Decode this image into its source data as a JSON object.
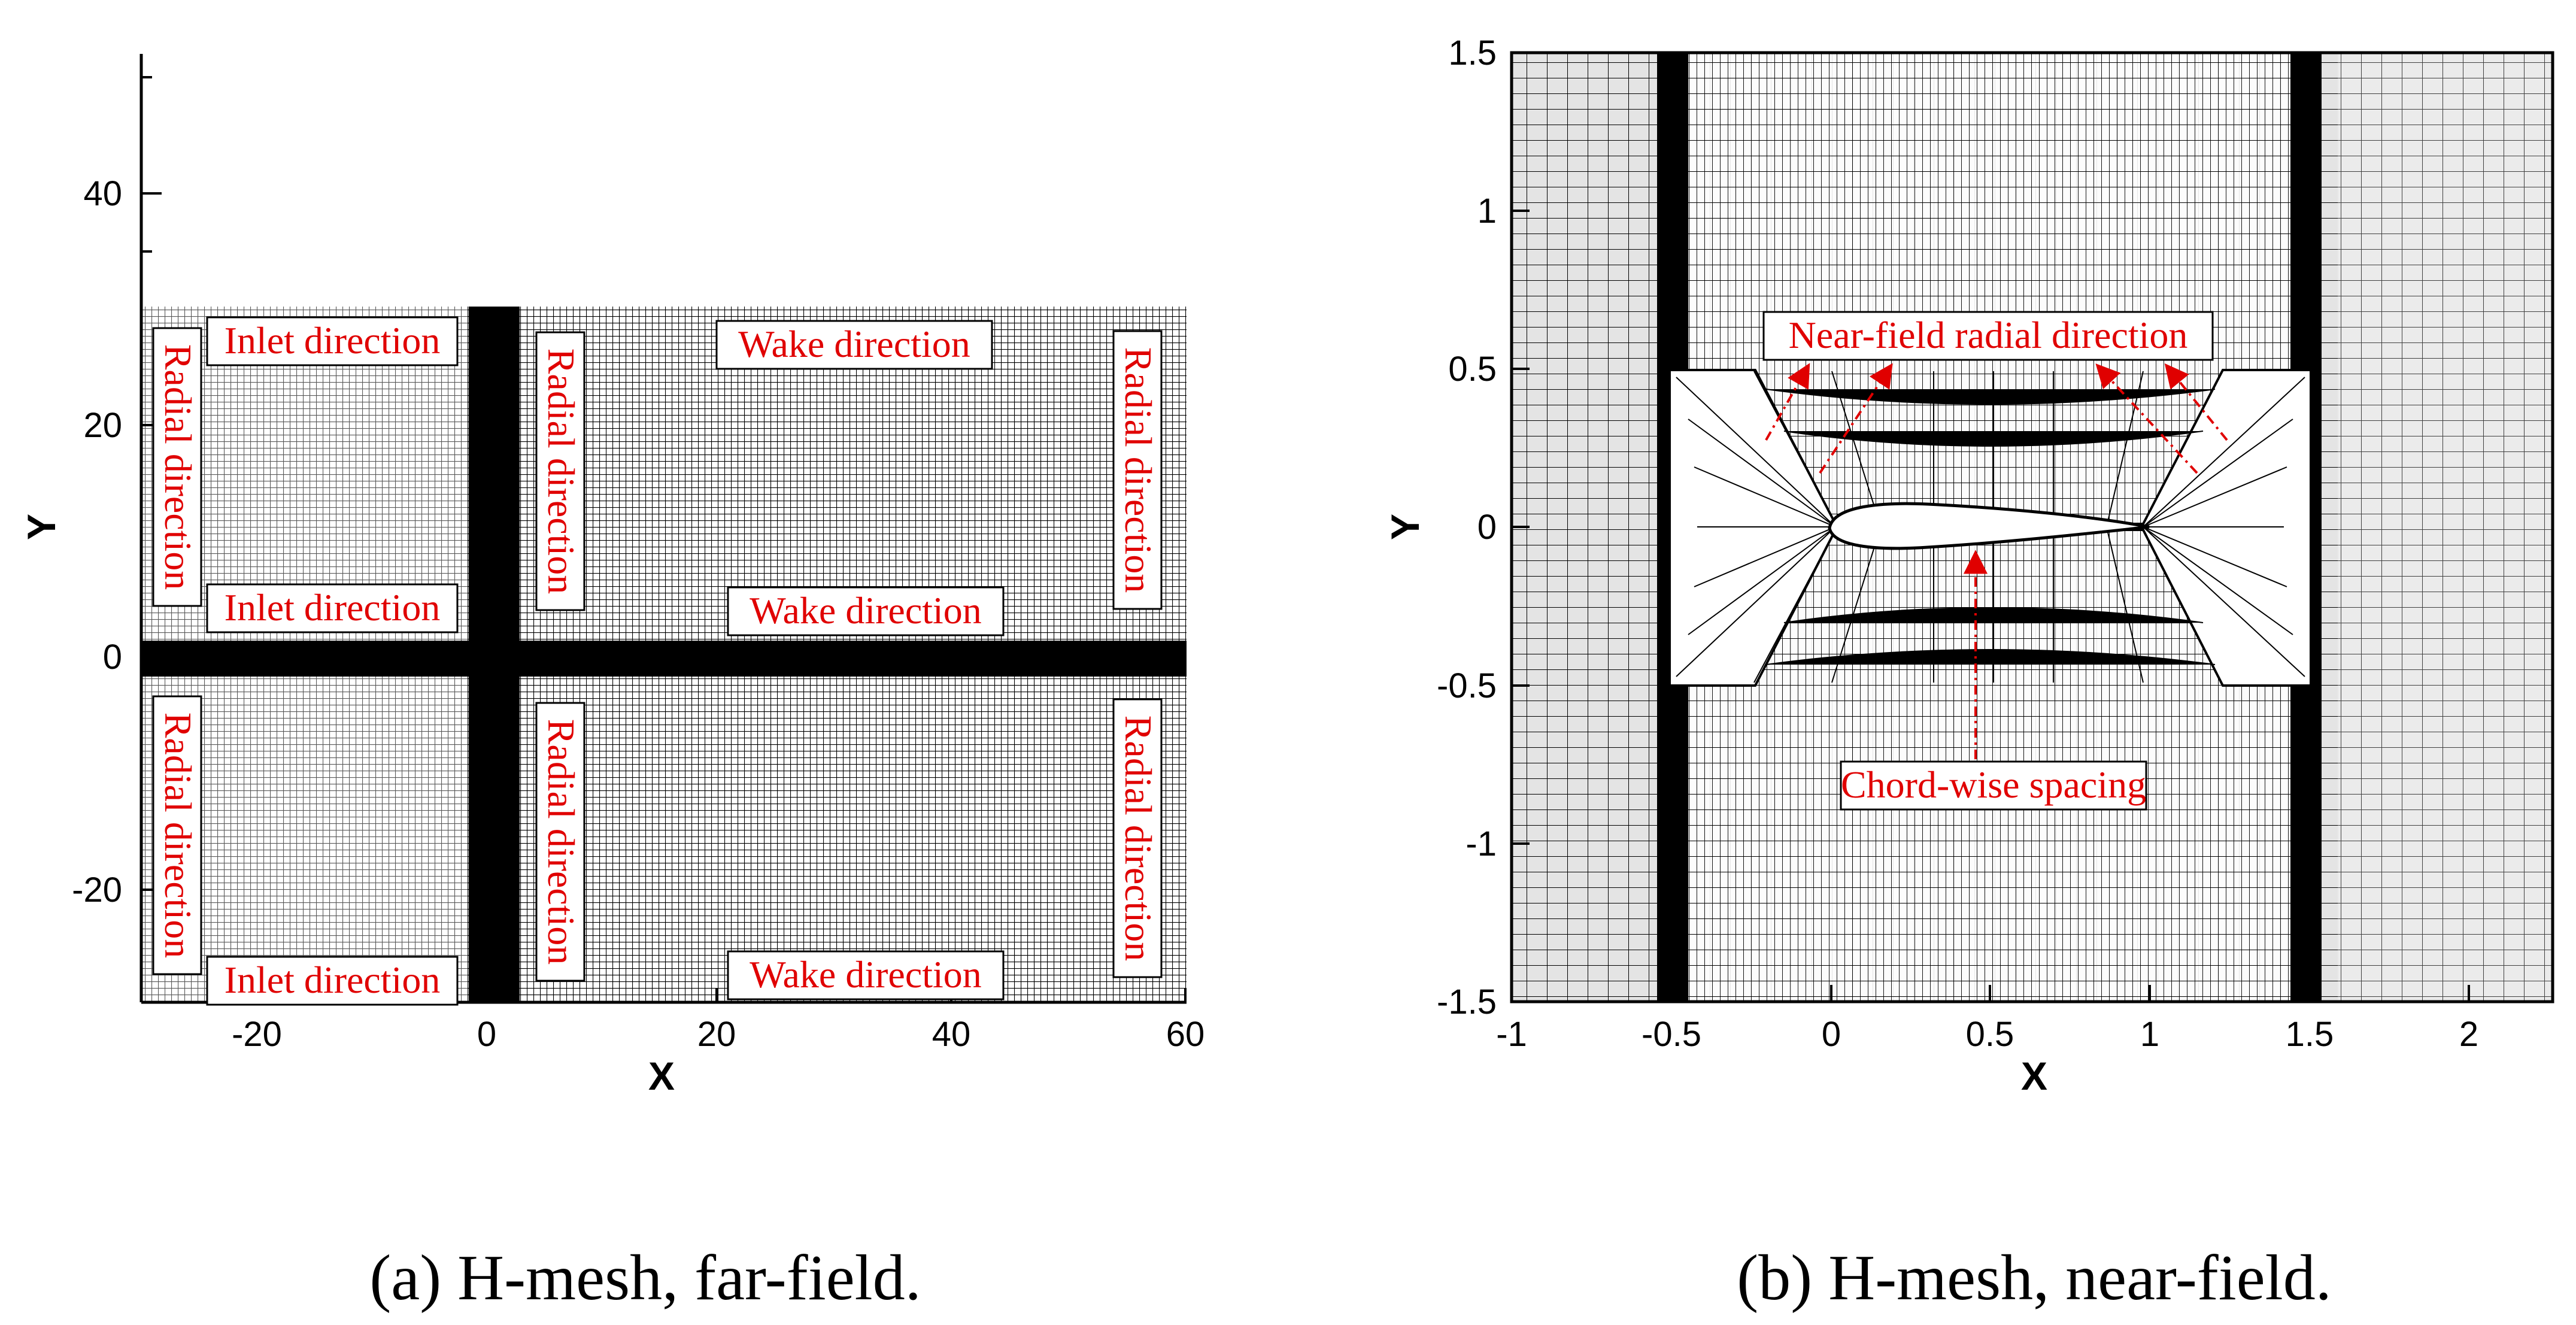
{
  "panel_a": {
    "caption": "(a) H-mesh, far-field.",
    "x_axis_label": "X",
    "y_axis_label": "Y",
    "x_ticks": [
      "-20",
      "0",
      "20",
      "40",
      "60"
    ],
    "y_ticks": [
      "40",
      "20",
      "0",
      "-20"
    ],
    "x_range": [
      -30,
      60
    ],
    "y_range": [
      -30,
      52
    ],
    "labels": {
      "inlet_top": "Inlet direction",
      "inlet_mid": "Inlet direction",
      "inlet_bot": "Inlet direction",
      "wake_top": "Wake direction",
      "wake_mid": "Wake direction",
      "wake_bot": "Wake direction",
      "radial_left_top": "Radial direction",
      "radial_left_bot": "Radial direction",
      "radial_mid_top": "Radial direction",
      "radial_mid_bot": "Radial direction",
      "radial_right_top": "Radial direction",
      "radial_right_bot": "Radial direction"
    }
  },
  "panel_b": {
    "caption": "(b) H-mesh, near-field.",
    "x_axis_label": "X",
    "y_axis_label": "Y",
    "x_ticks": [
      "-1",
      "-0.5",
      "0",
      "0.5",
      "1",
      "1.5",
      "2"
    ],
    "y_ticks": [
      "1.5",
      "1",
      "0.5",
      "0",
      "-0.5",
      "-1",
      "-1.5"
    ],
    "x_range": [
      -1,
      2.3
    ],
    "y_range": [
      -1.5,
      1.5
    ],
    "annotations": {
      "radial": "Near-field radial direction",
      "chord": "Chord-wise spacing"
    }
  },
  "colors": {
    "annotation": "#e00000",
    "mesh_line": "#000000",
    "mesh_background": "#d8d8d8"
  }
}
